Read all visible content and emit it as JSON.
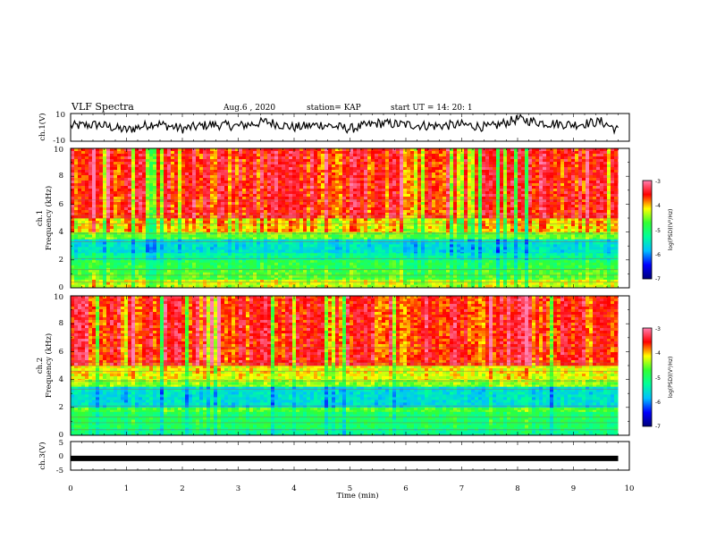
{
  "header": {
    "title": "VLF Spectra",
    "date": "Aug.6 , 2020",
    "station": "station= KAP",
    "start": "start UT = 14: 20: 1"
  },
  "chart_data": [
    {
      "type": "line",
      "panel": "ch.1 waveform",
      "ylabel": "ch.1(V)",
      "ylim": [
        -10,
        10
      ],
      "yticks": [
        "10",
        "-10"
      ],
      "x": [
        0,
        0.5,
        1,
        1.5,
        2,
        2.5,
        3,
        3.5,
        4,
        4.5,
        5,
        5.5,
        6,
        6.5,
        7,
        7.5,
        8,
        8.5,
        9,
        9.5,
        9.8
      ],
      "values": [
        1,
        2,
        -2,
        3,
        -1,
        2,
        1,
        4,
        0,
        2,
        -1,
        3,
        2,
        1,
        2,
        0,
        6,
        3,
        2,
        4,
        -2
      ],
      "color": "#000000"
    },
    {
      "type": "heatmap",
      "panel": "ch.1 spectrogram",
      "ylabel_line1": "ch.1",
      "ylabel_line2": "Frequency (kHz)",
      "ylim": [
        0,
        10
      ],
      "yticks": [
        "0",
        "2",
        "4",
        "6",
        "8",
        "10"
      ],
      "data_end_min": 9.8,
      "bands_khz": [
        {
          "from": 0.0,
          "to": 0.6,
          "level": -4.3
        },
        {
          "from": 0.6,
          "to": 1.3,
          "level": -4.7
        },
        {
          "from": 1.3,
          "to": 2.0,
          "level": -4.9
        },
        {
          "from": 2.0,
          "to": 2.5,
          "level": -5.3
        },
        {
          "from": 2.5,
          "to": 3.5,
          "level": -5.6
        },
        {
          "from": 3.5,
          "to": 4.0,
          "level": -4.6
        },
        {
          "from": 4.0,
          "to": 5.0,
          "level": -4.1
        },
        {
          "from": 5.0,
          "to": 10.0,
          "level": -3.6
        }
      ]
    },
    {
      "type": "heatmap",
      "panel": "ch.2 spectrogram",
      "ylabel_line1": "ch.2",
      "ylabel_line2": "Frequency (kHz)",
      "ylim": [
        0,
        10
      ],
      "yticks": [
        "0",
        "2",
        "4",
        "6",
        "8",
        "10"
      ],
      "data_end_min": 9.8,
      "bands_khz": [
        {
          "from": 0.0,
          "to": 0.5,
          "level": -5.2
        },
        {
          "from": 0.5,
          "to": 1.7,
          "level": -5.0
        },
        {
          "from": 1.7,
          "to": 2.0,
          "level": -4.7
        },
        {
          "from": 2.0,
          "to": 3.5,
          "level": -5.6
        },
        {
          "from": 3.5,
          "to": 4.0,
          "level": -4.5
        },
        {
          "from": 4.0,
          "to": 5.0,
          "level": -4.2
        },
        {
          "from": 5.0,
          "to": 10.0,
          "level": -3.6
        }
      ]
    },
    {
      "type": "line",
      "panel": "ch.3 waveform",
      "ylabel": "ch.3(V)",
      "ylim": [
        -5,
        5
      ],
      "yticks": [
        "5",
        "0",
        "-5"
      ],
      "x": [
        0,
        9.8
      ],
      "values": [
        -0.9,
        -0.9
      ],
      "color": "#000000"
    }
  ],
  "x_axis": {
    "label": "Time (min)",
    "range": [
      0,
      10
    ],
    "ticks": [
      "0",
      "1",
      "2",
      "3",
      "4",
      "5",
      "6",
      "7",
      "8",
      "9",
      "10"
    ]
  },
  "colorbar": {
    "label": "log(PSD)(V²/Hz)",
    "range": [
      -7,
      -3
    ],
    "ticks": [
      "-3",
      "-4",
      "-5",
      "-6",
      "-7"
    ],
    "colors": [
      "#00007a",
      "#0000ff",
      "#00bfff",
      "#00ff9a",
      "#33ff33",
      "#ffff00",
      "#ff0000",
      "#ff80b0"
    ]
  }
}
